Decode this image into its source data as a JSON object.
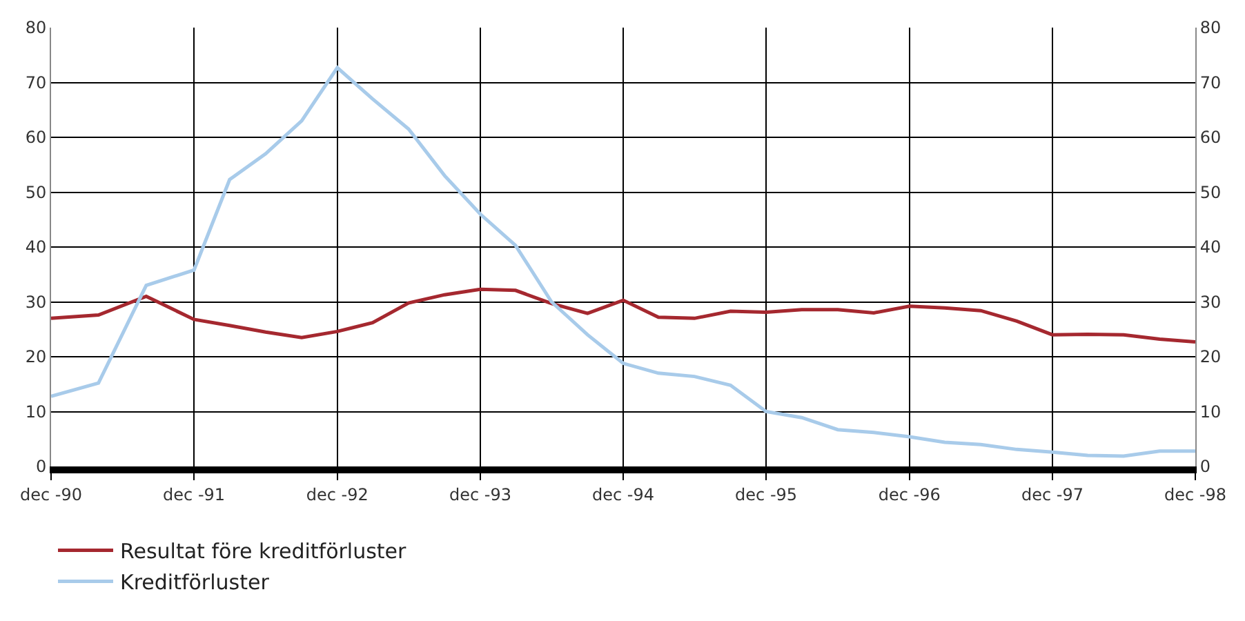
{
  "chart_data": {
    "type": "line",
    "x": [
      "1990-12",
      "1991-04",
      "1991-08",
      "1991-12",
      "1992-03",
      "1992-06",
      "1992-09",
      "1992-12",
      "1993-03",
      "1993-06",
      "1993-09",
      "1993-12",
      "1994-03",
      "1994-06",
      "1994-09",
      "1994-12",
      "1995-03",
      "1995-06",
      "1995-09",
      "1995-12",
      "1996-03",
      "1996-06",
      "1996-09",
      "1996-12",
      "1997-03",
      "1997-06",
      "1997-09",
      "1997-12",
      "1998-03",
      "1998-06",
      "1998-09",
      "1998-12"
    ],
    "series": [
      {
        "name": "Resultat före kreditförluster",
        "color": "#a5282f",
        "values": [
          27.0,
          27.6,
          31.0,
          26.8,
          25.7,
          24.5,
          23.5,
          24.6,
          26.2,
          29.8,
          31.3,
          32.3,
          32.1,
          29.7,
          27.9,
          30.3,
          27.2,
          27.0,
          28.3,
          28.1,
          28.6,
          28.6,
          28.0,
          29.2,
          28.9,
          28.4,
          26.5,
          24.0,
          24.1,
          24.0,
          23.2,
          22.7
        ]
      },
      {
        "name": "Kreditförluster",
        "color": "#a8cbea",
        "values": [
          12.8,
          15.2,
          33.0,
          35.8,
          52.3,
          57.0,
          63.0,
          72.7,
          67.0,
          61.5,
          53.0,
          46.0,
          40.3,
          30.0,
          24.0,
          18.8,
          17.0,
          16.4,
          14.8,
          10.0,
          8.9,
          6.7,
          6.2,
          5.4,
          4.4,
          4.0,
          3.1,
          2.6,
          2.0,
          1.9,
          2.8,
          2.8
        ]
      }
    ],
    "xlim": [
      "1990-12",
      "1998-12"
    ],
    "xticks": [
      {
        "value": "1990-12",
        "label": "dec -90"
      },
      {
        "value": "1991-12",
        "label": "dec -91"
      },
      {
        "value": "1992-12",
        "label": "dec -92"
      },
      {
        "value": "1993-12",
        "label": "dec -93"
      },
      {
        "value": "1994-12",
        "label": "dec -94"
      },
      {
        "value": "1995-12",
        "label": "dec -95"
      },
      {
        "value": "1996-12",
        "label": "dec -96"
      },
      {
        "value": "1997-12",
        "label": "dec -97"
      },
      {
        "value": "1998-12",
        "label": "dec -98"
      }
    ],
    "ylim": [
      0,
      80
    ],
    "yticks": [
      0,
      10,
      20,
      30,
      40,
      50,
      60,
      70,
      80
    ],
    "y2lim": [
      0,
      80
    ],
    "y2ticks": [
      0,
      10,
      20,
      30,
      40,
      50,
      60,
      70,
      80
    ],
    "grid": true,
    "legend": "bottom",
    "marker": "none",
    "line_style": "solid"
  }
}
